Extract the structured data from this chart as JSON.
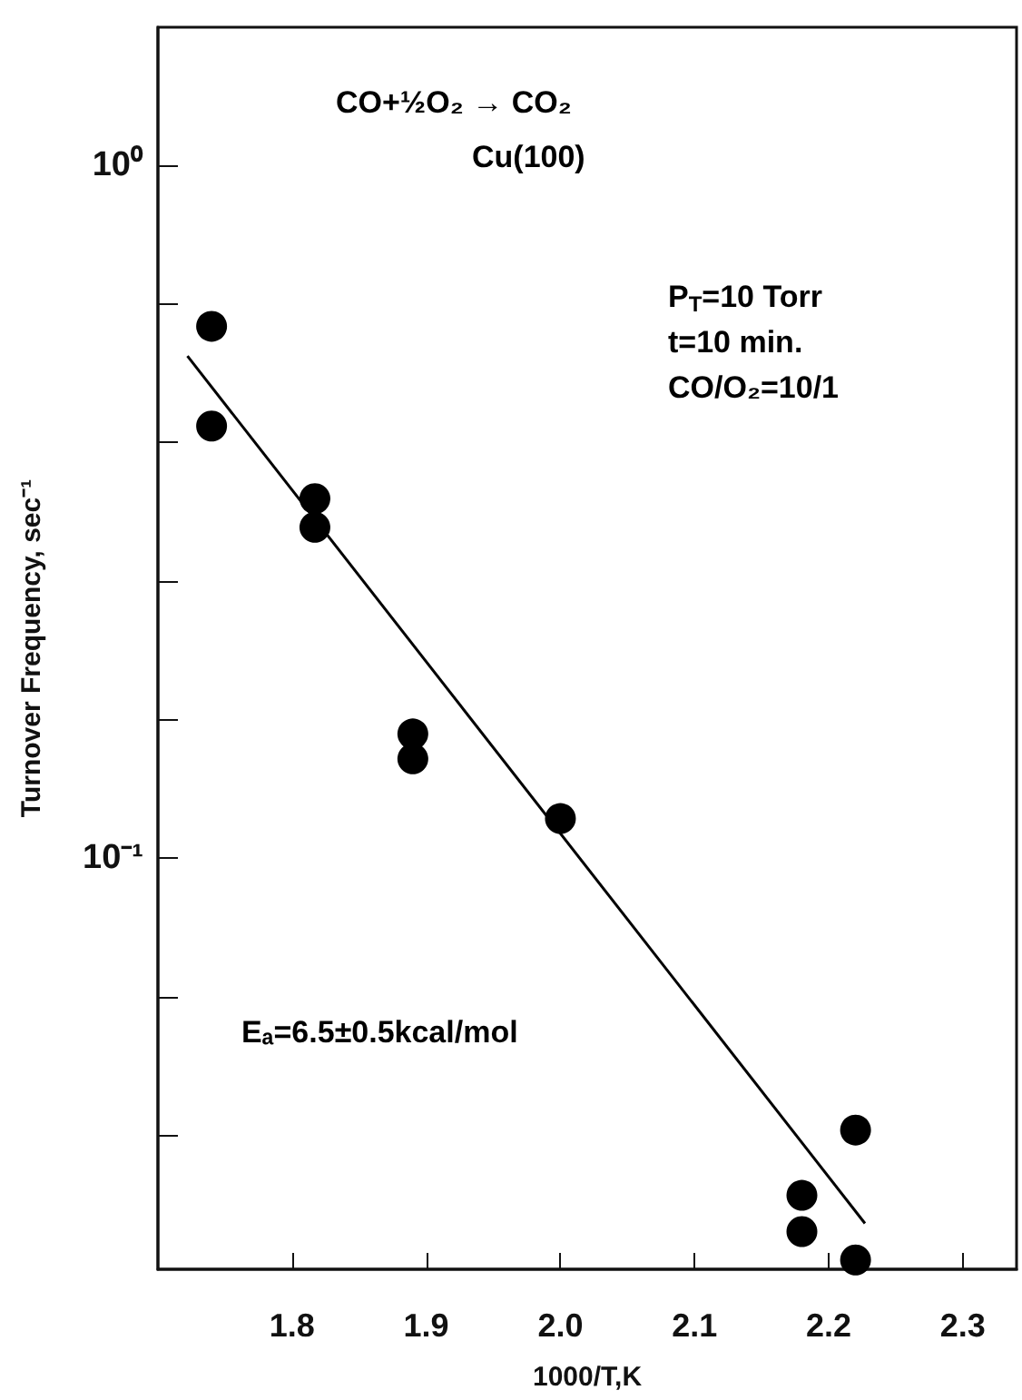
{
  "chart_data": {
    "type": "scatter",
    "xlabel": "1000/T,K",
    "ylabel": "Turnover Frequency, sec⁻¹",
    "annotations": [
      "CO+½O₂ → CO₂",
      "Cu(100)",
      "P$_{T}$=10 Torr",
      "t=10 min.",
      "CO/O₂=10/1",
      "Eₐ=6.5±0.5kcal/mol"
    ],
    "series": [
      {
        "color": "#000000",
        "x": [
          1.74,
          1.74,
          1.817,
          1.817,
          1.89,
          1.89,
          2.0,
          2.18,
          2.18,
          2.22,
          2.22
        ],
        "values": [
          0.585,
          0.42,
          0.33,
          0.3,
          0.151,
          0.139,
          0.114,
          0.0326,
          0.0289,
          0.0405,
          0.0263
        ]
      },
      {
        "type": "line",
        "color": "#000000",
        "marker": "none",
        "x": [
          1.722,
          2.227
        ],
        "values": [
          0.53,
          0.0297
        ]
      }
    ],
    "xlim": [
      1.7,
      2.34
    ],
    "xticks": [
      1.8,
      1.9,
      {
        "value": 2,
        "label": "2.0"
      },
      2.1,
      2.2,
      2.3
    ],
    "ylim": [
      0.0255,
      1.58
    ],
    "log": true,
    "yticks": [
      {
        "value": 1,
        "label": "10⁰"
      },
      {
        "value": 0.631,
        "label": null
      },
      {
        "value": 0.398,
        "label": null
      },
      {
        "value": 0.251,
        "label": null
      },
      {
        "value": 0.158,
        "label": null
      },
      {
        "value": 0.1,
        "label": "10⁻¹"
      },
      {
        "value": 0.0631,
        "label": null
      },
      {
        "value": 0.0398,
        "label": null
      }
    ],
    "grid": false
  }
}
